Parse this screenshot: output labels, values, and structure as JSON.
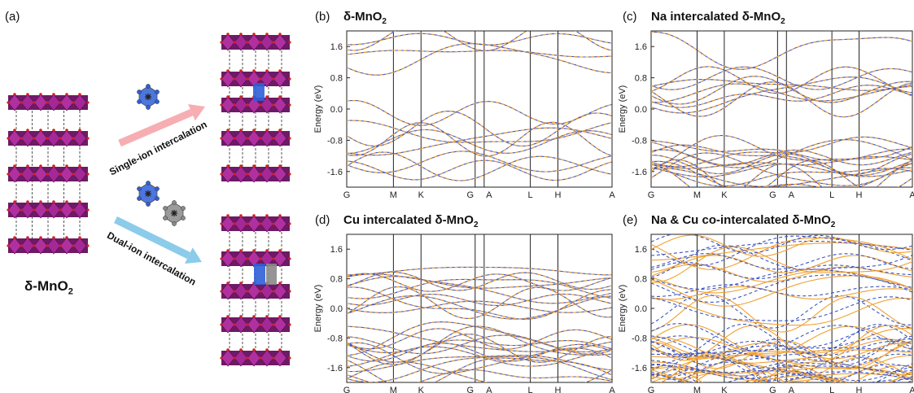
{
  "panel_a": {
    "letter": "(a)",
    "material_label_main": "δ-MnO",
    "material_label_sub": "2",
    "single_ion_label": "Single-ion intercalation",
    "dual_ion_label": "Dual-ion intercalation",
    "colors": {
      "octahedra": "#b0309f",
      "oxygen": "#d42020",
      "na_ion": "#2f5fd8",
      "cu_ion": "#8a8a8a",
      "pink_arrow": "#f6aeb2",
      "blue_arrow": "#8ccbea"
    }
  },
  "chart_data": [
    {
      "type": "line",
      "letter": "(b)",
      "title_main": "δ-MnO",
      "title_sub": "2",
      "ylabel": "Energy (eV)",
      "ylim": [
        -2.0,
        2.0
      ],
      "yticks": [
        "1.6",
        "0.8",
        "0.0",
        "-0.8",
        "-1.6"
      ],
      "kpoints": [
        "G",
        "M",
        "K",
        "G",
        "A",
        "L",
        "H",
        "A"
      ],
      "series": [
        {
          "color": "#3b55c4",
          "style": "solid"
        },
        {
          "color": "#f0a030",
          "style": "dashed"
        }
      ]
    },
    {
      "type": "line",
      "letter": "(c)",
      "title_main": "Na intercalated δ-MnO",
      "title_sub": "2",
      "ylabel": "Energy (eV)",
      "ylim": [
        -2.0,
        2.0
      ],
      "yticks": [
        "1.6",
        "0.8",
        "0.0",
        "-0.8",
        "-1.6"
      ],
      "kpoints": [
        "G",
        "M",
        "K",
        "G",
        "A",
        "L",
        "H",
        "A"
      ],
      "series": [
        {
          "color": "#3b55c4",
          "style": "solid"
        },
        {
          "color": "#f0a030",
          "style": "dashed"
        }
      ]
    },
    {
      "type": "line",
      "letter": "(d)",
      "title_main": "Cu intercalated δ-MnO",
      "title_sub": "2",
      "ylabel": "Energy (eV)",
      "ylim": [
        -2.0,
        2.0
      ],
      "yticks": [
        "1.6",
        "0.8",
        "0.0",
        "-0.8",
        "-1.6"
      ],
      "kpoints": [
        "G",
        "M",
        "K",
        "G",
        "A",
        "L",
        "H",
        "A"
      ],
      "series": [
        {
          "color": "#3b55c4",
          "style": "solid"
        },
        {
          "color": "#f0a030",
          "style": "dashed"
        }
      ]
    },
    {
      "type": "line",
      "letter": "(e)",
      "title_main": "Na & Cu co-intercalated δ-MnO",
      "title_sub": "2",
      "ylabel": "Energy (eV)",
      "ylim": [
        -2.0,
        2.0
      ],
      "yticks": [
        "1.6",
        "0.8",
        "0.0",
        "-0.8",
        "-1.6"
      ],
      "kpoints": [
        "G",
        "M",
        "K",
        "G",
        "A",
        "L",
        "H",
        "A"
      ],
      "series": [
        {
          "color": "#f0a030",
          "style": "solid"
        },
        {
          "color": "#3b55c4",
          "style": "dashed"
        }
      ]
    }
  ]
}
